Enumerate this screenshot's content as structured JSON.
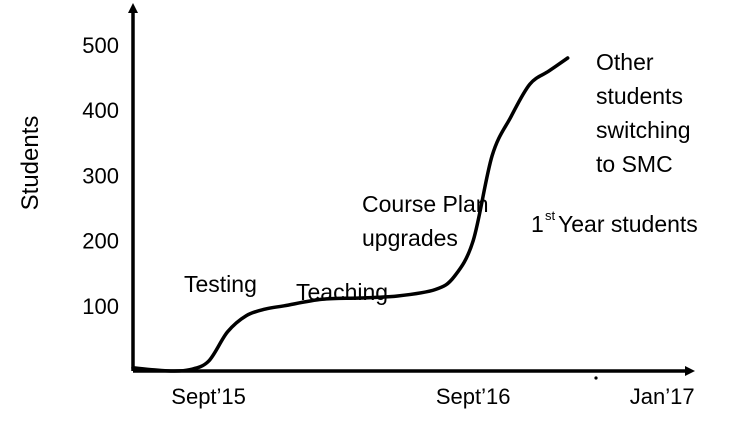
{
  "chart_data": {
    "type": "line",
    "title": "",
    "xlabel": "",
    "ylabel": "Students",
    "ylim": [
      0,
      550
    ],
    "x_ticks": [
      "Sept’15",
      "Sept’16",
      "Jan’17"
    ],
    "y_ticks": [
      100,
      200,
      300,
      400,
      500
    ],
    "grid": false,
    "legend": "none",
    "series": [
      {
        "color": "#000000",
        "x_months_from_start": [
          0,
          1,
          2,
          3,
          4,
          5,
          6,
          7,
          8,
          10,
          12,
          14,
          16,
          17,
          18,
          19,
          20,
          21,
          22,
          23
        ],
        "values": [
          5,
          2,
          0,
          2,
          15,
          60,
          85,
          95,
          100,
          110,
          112,
          115,
          125,
          145,
          200,
          330,
          390,
          440,
          460,
          480
        ]
      }
    ],
    "annotations": [
      {
        "id": "testing",
        "lines": [
          "Testing"
        ]
      },
      {
        "id": "teaching",
        "lines": [
          "Teaching"
        ]
      },
      {
        "id": "course-plan",
        "lines": [
          "Course Plan",
          "upgrades"
        ]
      },
      {
        "id": "first-year",
        "main": "1",
        "sup": "st",
        "rest": " Year students"
      },
      {
        "id": "other",
        "lines": [
          "Other",
          "students",
          "switching",
          "to SMC"
        ]
      }
    ]
  }
}
